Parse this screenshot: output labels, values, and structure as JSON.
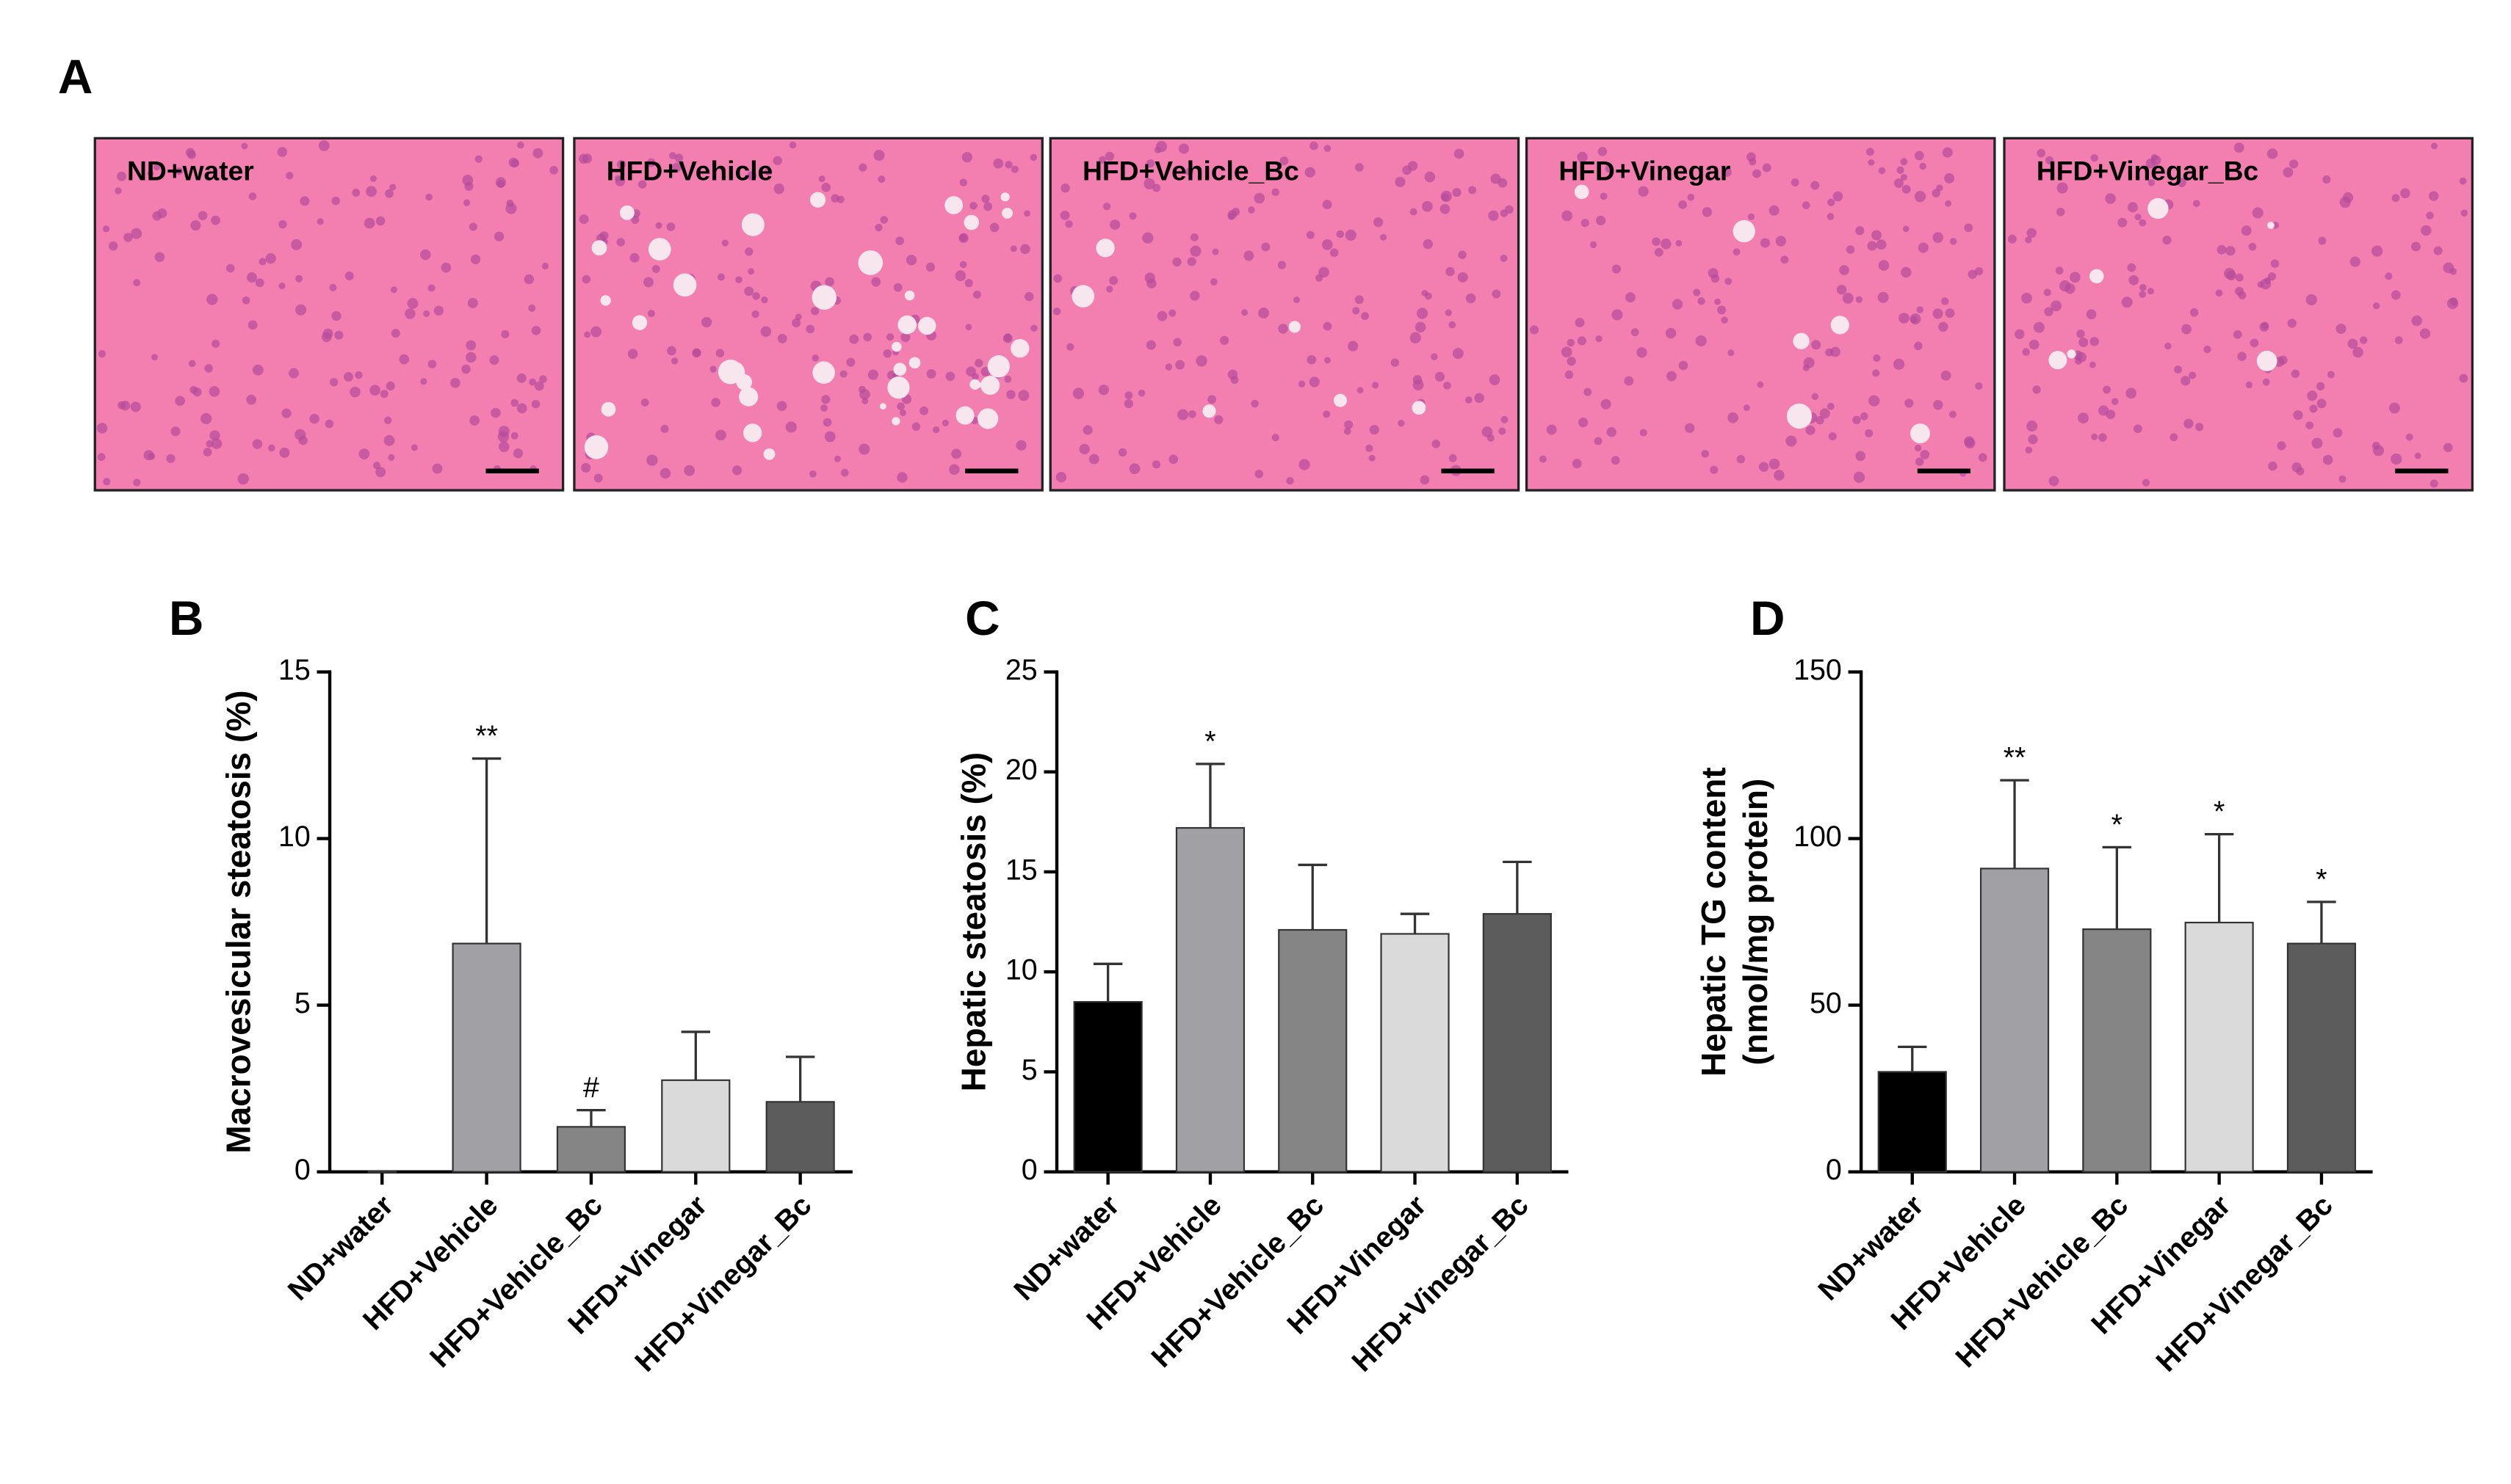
{
  "panel_a": {
    "label": "A",
    "images": [
      "ND+water",
      "HFD+Vehicle",
      "HFD+Vehicle_Bc",
      "HFD+Vinegar",
      "HFD+Vinegar_Bc"
    ]
  },
  "chart_data": [
    {
      "type": "bar",
      "panel_label": "B",
      "ylabel": [
        "Macrovesicular steatosis (%)"
      ],
      "categories": [
        "ND+water",
        "HFD+Vehicle",
        "HFD+Vehicle_Bc",
        "HFD+Vinegar",
        "HFD+Vinegar_Bc"
      ],
      "values": [
        0,
        6.85,
        1.35,
        2.75,
        2.1
      ],
      "errors": [
        0,
        5.55,
        0.5,
        1.45,
        1.35
      ],
      "annotations": [
        null,
        "**",
        "#",
        null,
        null
      ],
      "colors": [
        "#000000",
        "#a1a1a5",
        "#858585",
        "#dadada",
        "#5c5c5c"
      ],
      "ylim": [
        0,
        15
      ],
      "yticks": [
        0,
        5,
        10,
        15
      ]
    },
    {
      "type": "bar",
      "panel_label": "C",
      "ylabel": [
        "Hepatic steatosis (%)"
      ],
      "categories": [
        "ND+water",
        "HFD+Vehicle",
        "HFD+Vehicle_Bc",
        "HFD+Vinegar",
        "HFD+Vinegar_Bc"
      ],
      "values": [
        8.5,
        17.2,
        12.1,
        11.9,
        12.9
      ],
      "errors": [
        1.9,
        3.2,
        3.25,
        1.0,
        2.6
      ],
      "annotations": [
        null,
        "*",
        null,
        null,
        null
      ],
      "colors": [
        "#000000",
        "#a1a1a5",
        "#858585",
        "#dadada",
        "#5c5c5c"
      ],
      "ylim": [
        0,
        25
      ],
      "yticks": [
        0,
        5,
        10,
        15,
        20,
        25
      ]
    },
    {
      "type": "bar",
      "panel_label": "D",
      "ylabel": [
        "Hepatic TG content",
        "(nmol/mg protein)"
      ],
      "categories": [
        "ND+water",
        "HFD+Vehicle",
        "HFD+Vehicle_Bc",
        "HFD+Vinegar",
        "HFD+Vinegar_Bc"
      ],
      "values": [
        30,
        91,
        72.8,
        74.8,
        68.5
      ],
      "errors": [
        7.5,
        26.5,
        24.6,
        26.5,
        12.5
      ],
      "annotations": [
        null,
        "**",
        "*",
        "*",
        "*"
      ],
      "colors": [
        "#000000",
        "#a1a1a5",
        "#858585",
        "#dadada",
        "#5c5c5c"
      ],
      "ylim": [
        0,
        150
      ],
      "yticks": [
        0,
        50,
        100,
        150
      ]
    }
  ]
}
